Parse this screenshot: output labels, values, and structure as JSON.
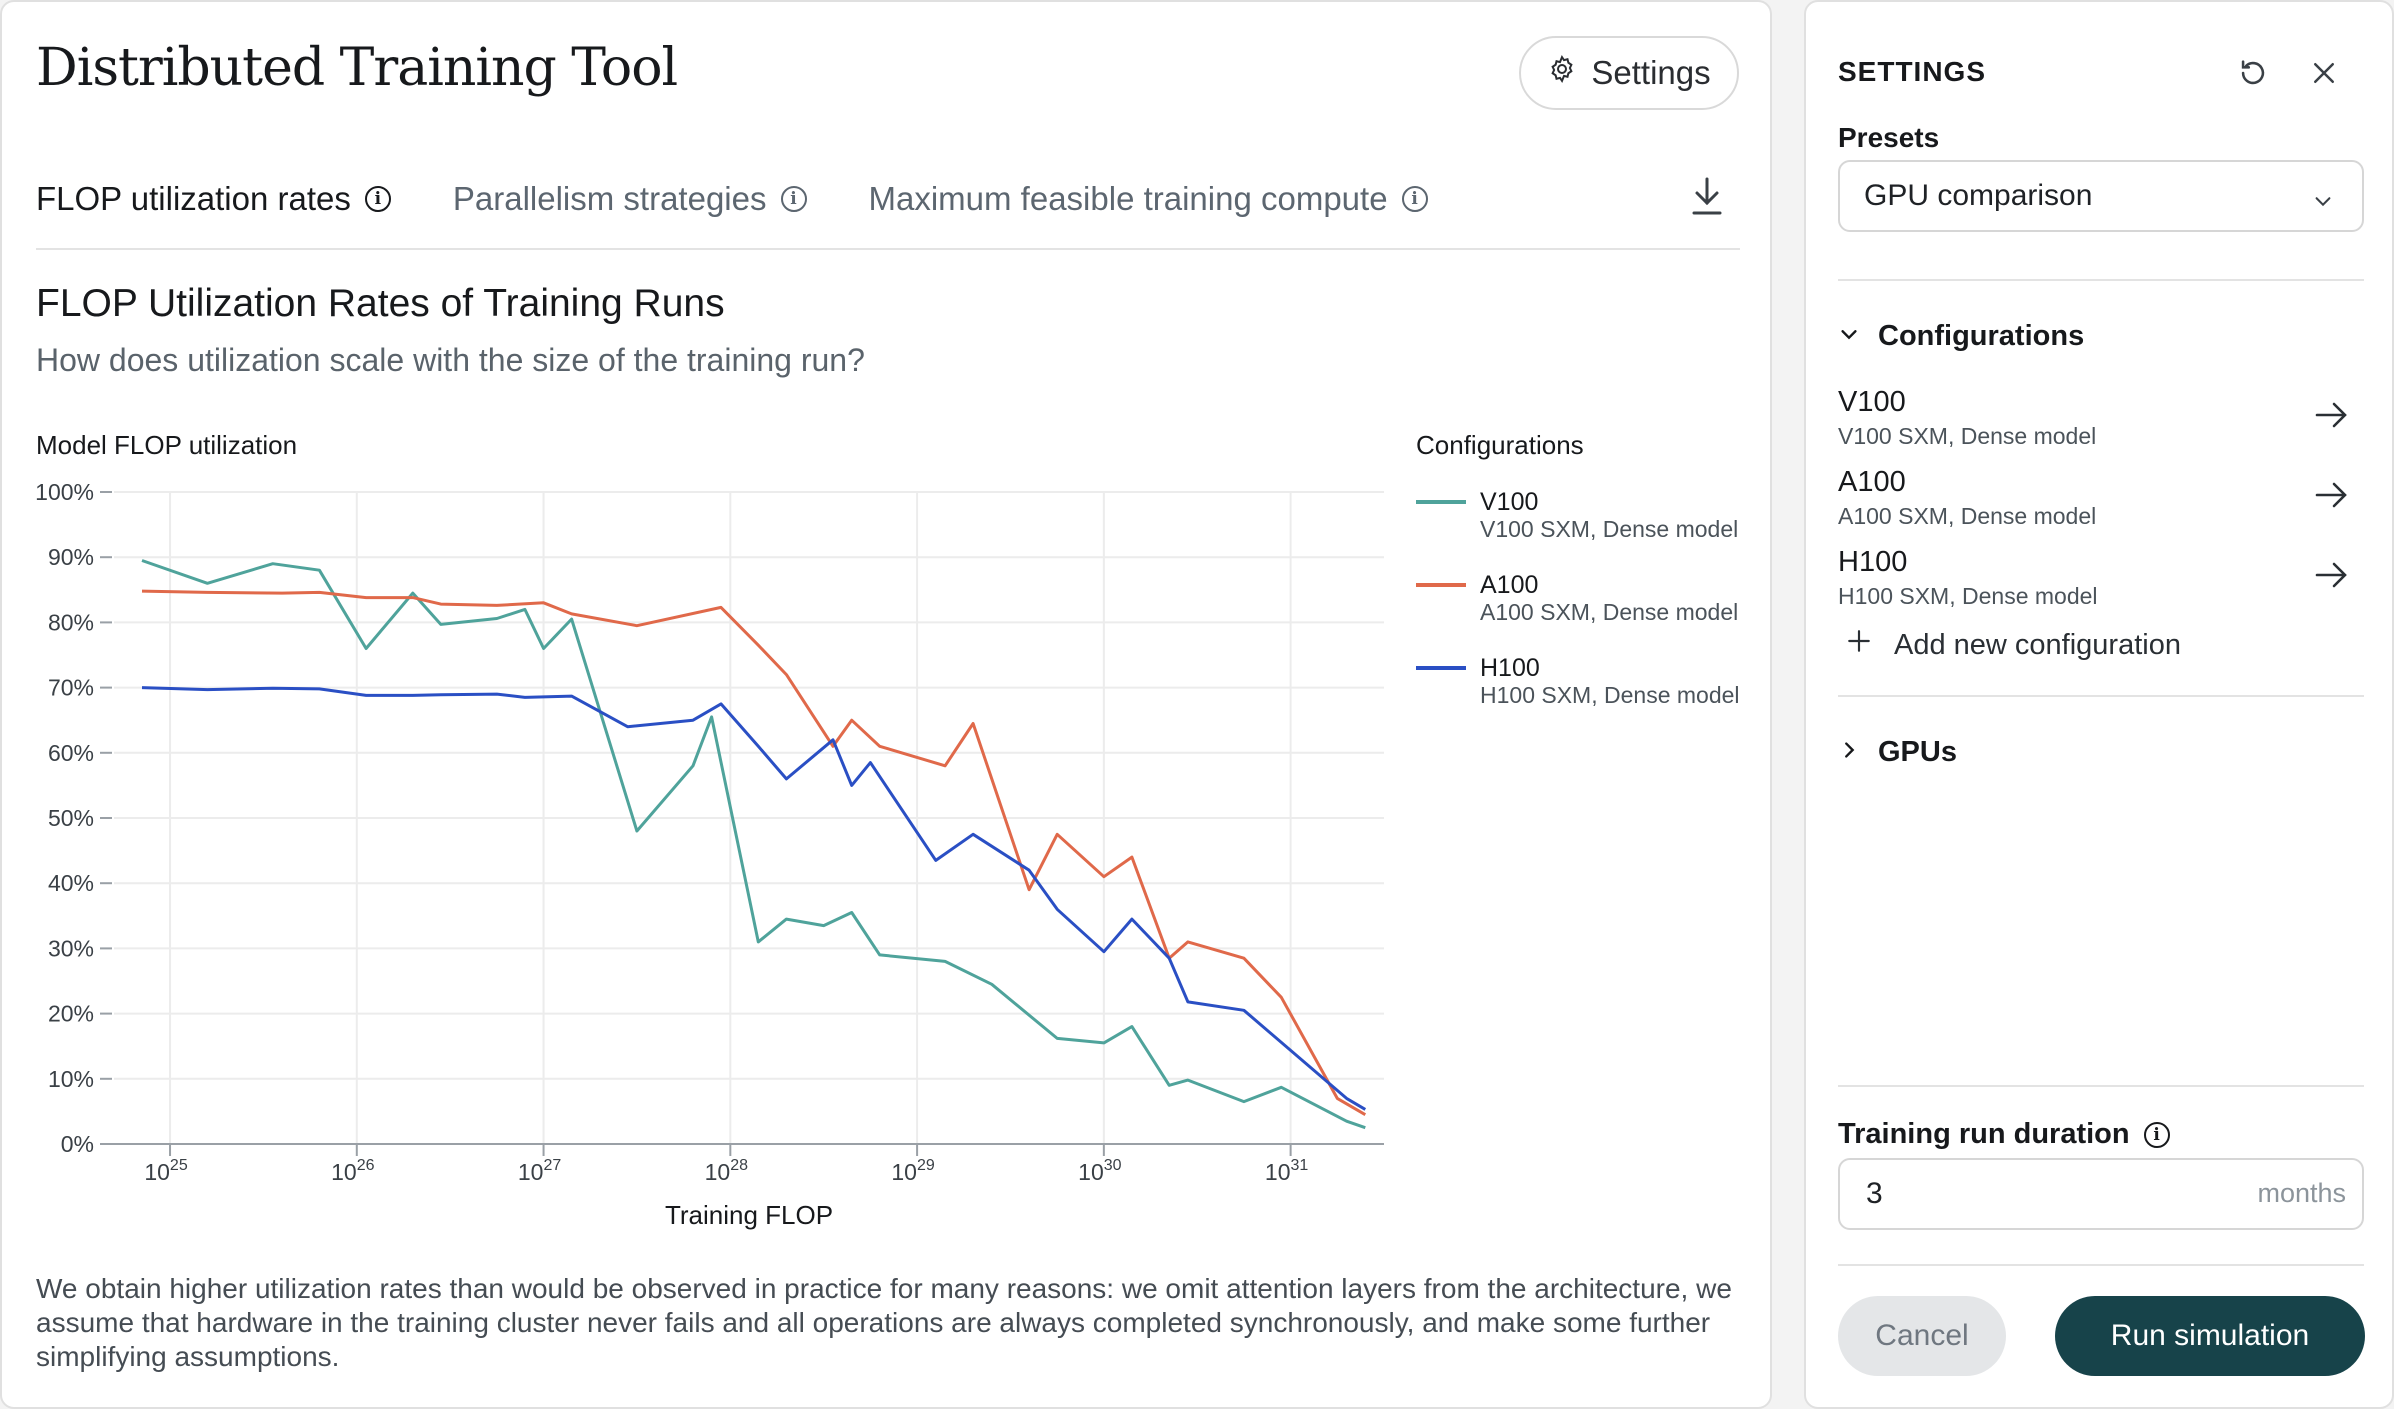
{
  "app": {
    "title": "Distributed Training Tool",
    "settings_button_label": "Settings"
  },
  "tabs": [
    {
      "label": "FLOP utilization rates",
      "active": true
    },
    {
      "label": "Parallelism strategies",
      "active": false
    },
    {
      "label": "Maximum feasible training compute",
      "active": false
    }
  ],
  "chart": {
    "heading": "FLOP Utilization Rates of Training Runs",
    "subheading": "How does utilization scale with the size of the training run?",
    "legend_title": "Configurations"
  },
  "chart_data": {
    "type": "line",
    "title": "FLOP Utilization Rates of Training Runs",
    "xlabel": "Training FLOP",
    "ylabel": "Model FLOP utilization",
    "x_scale": "log",
    "xlim_log10": [
      24.7,
      31.5
    ],
    "ylim": [
      0,
      100
    ],
    "y_unit": "%",
    "x_tick_exponents": [
      25,
      26,
      27,
      28,
      29,
      30,
      31
    ],
    "x_tick_base": "10",
    "y_ticks": [
      "0%",
      "10%",
      "20%",
      "30%",
      "40%",
      "50%",
      "60%",
      "70%",
      "80%",
      "90%",
      "100%"
    ],
    "grid": true,
    "legend_position": "right",
    "series": [
      {
        "name": "V100",
        "description": "V100 SXM, Dense model",
        "color": "#4fa39b",
        "points": [
          [
            24.85,
            89.5
          ],
          [
            25.2,
            86
          ],
          [
            25.55,
            89
          ],
          [
            25.8,
            88
          ],
          [
            26.05,
            76
          ],
          [
            26.3,
            84.5
          ],
          [
            26.45,
            79.7
          ],
          [
            26.75,
            80.6
          ],
          [
            26.9,
            82
          ],
          [
            27.0,
            76
          ],
          [
            27.15,
            80.5
          ],
          [
            27.5,
            48
          ],
          [
            27.8,
            58
          ],
          [
            27.9,
            65.5
          ],
          [
            28.15,
            31
          ],
          [
            28.3,
            34.5
          ],
          [
            28.5,
            33.5
          ],
          [
            28.65,
            35.5
          ],
          [
            28.8,
            29
          ],
          [
            29.15,
            28
          ],
          [
            29.4,
            24.5
          ],
          [
            29.75,
            16.2
          ],
          [
            30.0,
            15.5
          ],
          [
            30.15,
            18
          ],
          [
            30.35,
            9
          ],
          [
            30.45,
            9.8
          ],
          [
            30.75,
            6.5
          ],
          [
            30.95,
            8.7
          ],
          [
            31.3,
            3.5
          ],
          [
            31.4,
            2.5
          ]
        ]
      },
      {
        "name": "A100",
        "description": "A100 SXM, Dense model",
        "color": "#e0694a",
        "points": [
          [
            24.85,
            84.8
          ],
          [
            25.2,
            84.6
          ],
          [
            25.6,
            84.5
          ],
          [
            25.8,
            84.6
          ],
          [
            26.05,
            83.8
          ],
          [
            26.3,
            83.8
          ],
          [
            26.45,
            82.8
          ],
          [
            26.75,
            82.6
          ],
          [
            27.0,
            83
          ],
          [
            27.15,
            81.3
          ],
          [
            27.5,
            79.5
          ],
          [
            27.95,
            82.3
          ],
          [
            28.15,
            76.5
          ],
          [
            28.3,
            72
          ],
          [
            28.55,
            61
          ],
          [
            28.65,
            65
          ],
          [
            28.8,
            61
          ],
          [
            29.15,
            58
          ],
          [
            29.3,
            64.5
          ],
          [
            29.6,
            39
          ],
          [
            29.75,
            47.5
          ],
          [
            30.0,
            41
          ],
          [
            30.15,
            44
          ],
          [
            30.35,
            28.5
          ],
          [
            30.45,
            31
          ],
          [
            30.75,
            28.5
          ],
          [
            30.95,
            22.5
          ],
          [
            31.25,
            7
          ],
          [
            31.4,
            4.5
          ]
        ]
      },
      {
        "name": "H100",
        "description": "H100 SXM, Dense model",
        "color": "#2a4fc4",
        "points": [
          [
            24.85,
            70
          ],
          [
            25.2,
            69.7
          ],
          [
            25.55,
            69.9
          ],
          [
            25.8,
            69.8
          ],
          [
            26.05,
            68.8
          ],
          [
            26.3,
            68.8
          ],
          [
            26.45,
            68.9
          ],
          [
            26.75,
            69
          ],
          [
            26.9,
            68.5
          ],
          [
            27.15,
            68.7
          ],
          [
            27.45,
            64
          ],
          [
            27.8,
            65
          ],
          [
            27.95,
            67.5
          ],
          [
            28.15,
            61
          ],
          [
            28.3,
            56
          ],
          [
            28.55,
            62
          ],
          [
            28.65,
            55
          ],
          [
            28.75,
            58.5
          ],
          [
            29.1,
            43.5
          ],
          [
            29.3,
            47.5
          ],
          [
            29.6,
            42
          ],
          [
            29.75,
            36
          ],
          [
            30.0,
            29.5
          ],
          [
            30.15,
            34.5
          ],
          [
            30.35,
            28.5
          ],
          [
            30.45,
            21.8
          ],
          [
            30.75,
            20.5
          ],
          [
            31.3,
            7
          ],
          [
            31.4,
            5.3
          ]
        ]
      }
    ]
  },
  "footnote": "We obtain higher utilization rates than would be observed in practice for many reasons: we omit attention layers from the architecture, we assume that hardware in the training cluster never fails and all operations are always completed synchronously, and make some further simplifying assumptions.",
  "settings": {
    "heading": "SETTINGS",
    "presets_label": "Presets",
    "preset_value": "GPU comparison",
    "configurations_heading": "Configurations",
    "configurations": [
      {
        "name": "V100",
        "description": "V100 SXM, Dense model"
      },
      {
        "name": "A100",
        "description": "A100 SXM, Dense model"
      },
      {
        "name": "H100",
        "description": "H100 SXM, Dense model"
      }
    ],
    "add_config_label": "Add new configuration",
    "gpus_heading": "GPUs",
    "duration_label": "Training run duration",
    "duration_value": "3",
    "duration_unit": "months",
    "cancel_label": "Cancel",
    "run_label": "Run simulation"
  },
  "colors": {
    "accent": "#17434a",
    "grid": "#ececec"
  }
}
